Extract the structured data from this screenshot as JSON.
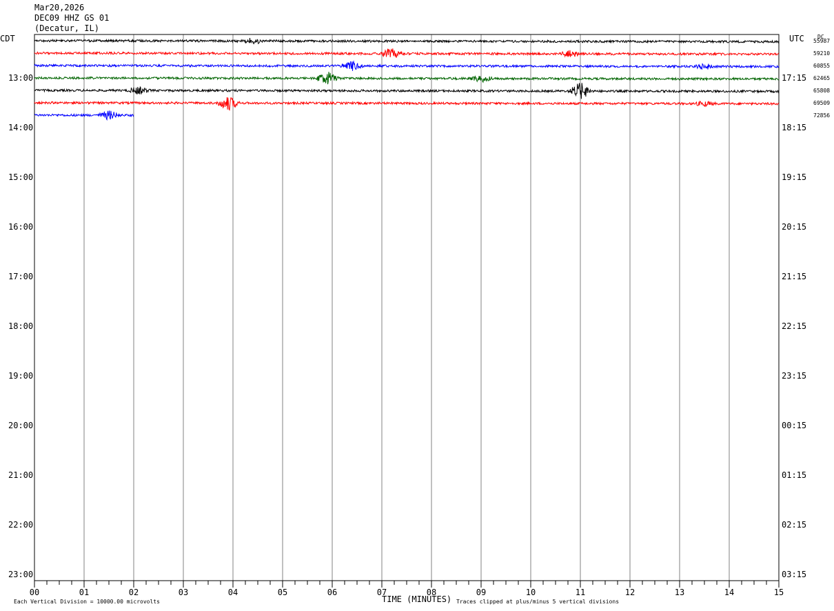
{
  "header": {
    "date": "Mar20,2026",
    "station": "DEC09 HHZ GS 01",
    "location": "(Decatur, IL)"
  },
  "left_axis": {
    "label": "CDT"
  },
  "right_axis": {
    "label": "UTC"
  },
  "dc_header": "DC",
  "footer": {
    "scale_note": "Each Vertical Division = 10000.00 microvolts",
    "clip_note": "Traces clipped at plus/minus 5 vertical divisions"
  },
  "colors": {
    "trace_cycle": [
      "#000000",
      "#ff0000",
      "#0000ff",
      "#006400"
    ],
    "grid": "#808080",
    "frame": "#000000"
  },
  "chart_data": {
    "type": "line",
    "title": "DEC09 HHZ GS 01",
    "xlabel": "TIME (MINUTES)",
    "ylabel": "",
    "xlim": [
      0,
      15
    ],
    "x_ticks": [
      "00",
      "01",
      "02",
      "03",
      "04",
      "05",
      "06",
      "07",
      "08",
      "09",
      "10",
      "11",
      "12",
      "13",
      "14",
      "15"
    ],
    "x_minor_step": 0.25,
    "rows_total": 44,
    "rows_per_hour": 4,
    "rows_start_offset_quarters": 3,
    "left_hour_labels": [
      "13:00",
      "14:00",
      "15:00",
      "16:00",
      "17:00",
      "18:00",
      "19:00",
      "20:00",
      "21:00",
      "22:00",
      "23:00"
    ],
    "right_hour_labels": [
      "17:15",
      "18:15",
      "19:15",
      "20:15",
      "21:15",
      "22:15",
      "23:15",
      "00:15",
      "01:15",
      "02:15",
      "03:15"
    ],
    "grid": true,
    "series": [
      {
        "row": 0,
        "color": "black",
        "dc": "55987",
        "minutes": 15,
        "drift": 0.1,
        "events": [
          [
            4.4,
            4
          ]
        ]
      },
      {
        "row": 1,
        "color": "red",
        "dc": "59210",
        "minutes": 15,
        "drift": 0.1,
        "events": [
          [
            7.2,
            8
          ],
          [
            10.8,
            4
          ]
        ]
      },
      {
        "row": 2,
        "color": "blue",
        "dc": "60855",
        "minutes": 15,
        "drift": 0.1,
        "events": [
          [
            6.4,
            6
          ],
          [
            13.5,
            4
          ]
        ]
      },
      {
        "row": 3,
        "color": "green",
        "dc": "62465",
        "minutes": 15,
        "drift": 0.1,
        "events": [
          [
            5.9,
            10
          ],
          [
            9.0,
            5
          ]
        ]
      },
      {
        "row": 4,
        "color": "black",
        "dc": "65808",
        "minutes": 15,
        "drift": 0.1,
        "events": [
          [
            2.1,
            5
          ],
          [
            11.0,
            12
          ]
        ]
      },
      {
        "row": 5,
        "color": "red",
        "dc": "69509",
        "minutes": 15,
        "drift": 0.1,
        "events": [
          [
            3.9,
            10
          ],
          [
            13.5,
            3
          ]
        ]
      },
      {
        "row": 6,
        "color": "blue",
        "dc": "72856",
        "minutes": 2.0,
        "drift": 0.05,
        "events": [
          [
            1.5,
            6
          ]
        ]
      }
    ]
  }
}
